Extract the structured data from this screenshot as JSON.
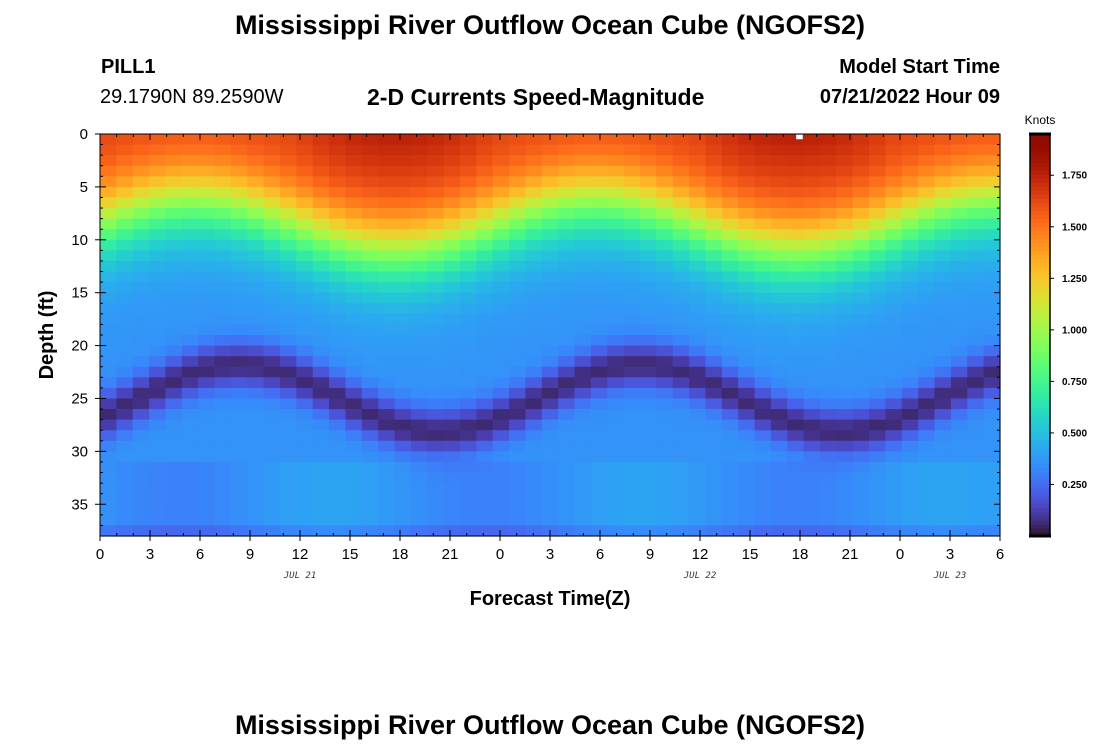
{
  "page": {
    "title": "Mississippi River Outflow Ocean Cube (NGOFS2)",
    "footer_title": "Mississippi River Outflow Ocean Cube (NGOFS2)",
    "station_name": "PILL1",
    "station_coords": "29.1790N  89.2590W",
    "subtitle": "2-D Currents Speed-Magnitude",
    "model_start_label": "Model Start Time",
    "model_start_value": "07/21/2022 Hour 09"
  },
  "chart_data": {
    "type": "heatmap",
    "title": "2-D Currents Speed-Magnitude",
    "xlabel": "Forecast Time(Z)",
    "ylabel": "Depth (ft)",
    "x_range_hours": [
      0,
      54
    ],
    "x_ticks": [
      "0",
      "3",
      "6",
      "9",
      "12",
      "15",
      "18",
      "21",
      "0",
      "3",
      "6",
      "9",
      "12",
      "15",
      "18",
      "21",
      "0",
      "3",
      "6"
    ],
    "x_ticks_hours": [
      0,
      3,
      6,
      9,
      12,
      15,
      18,
      21,
      24,
      27,
      30,
      33,
      36,
      39,
      42,
      45,
      48,
      51,
      54
    ],
    "date_labels": [
      {
        "text": "JUL 21",
        "hour": 12
      },
      {
        "text": "JUL 22",
        "hour": 36
      },
      {
        "text": "JUL 23",
        "hour": 51
      }
    ],
    "y_range": [
      0,
      38
    ],
    "y_inverted": true,
    "y_ticks": [
      "0",
      "5",
      "10",
      "15",
      "20",
      "25",
      "30",
      "35"
    ],
    "y_ticks_values": [
      0,
      5,
      10,
      15,
      20,
      25,
      30,
      35
    ],
    "colorbar": {
      "unit_label": "Knots",
      "range": [
        0,
        1.95
      ],
      "tick_values": [
        0.25,
        0.5,
        0.75,
        1.0,
        1.25,
        1.5,
        1.75
      ],
      "tick_labels": [
        "0.250",
        "0.500",
        "0.750",
        "1.000",
        "1.250",
        "1.500",
        "1.750"
      ],
      "colormap": "turbo"
    },
    "grid": false,
    "max_marker": {
      "hour": 42,
      "depth": 0
    },
    "field_description": "Speed-magnitude field sampled at 55 hourly columns x 38 one-foot depth rows; values generated from the fitted surface formula in the drawing script"
  }
}
